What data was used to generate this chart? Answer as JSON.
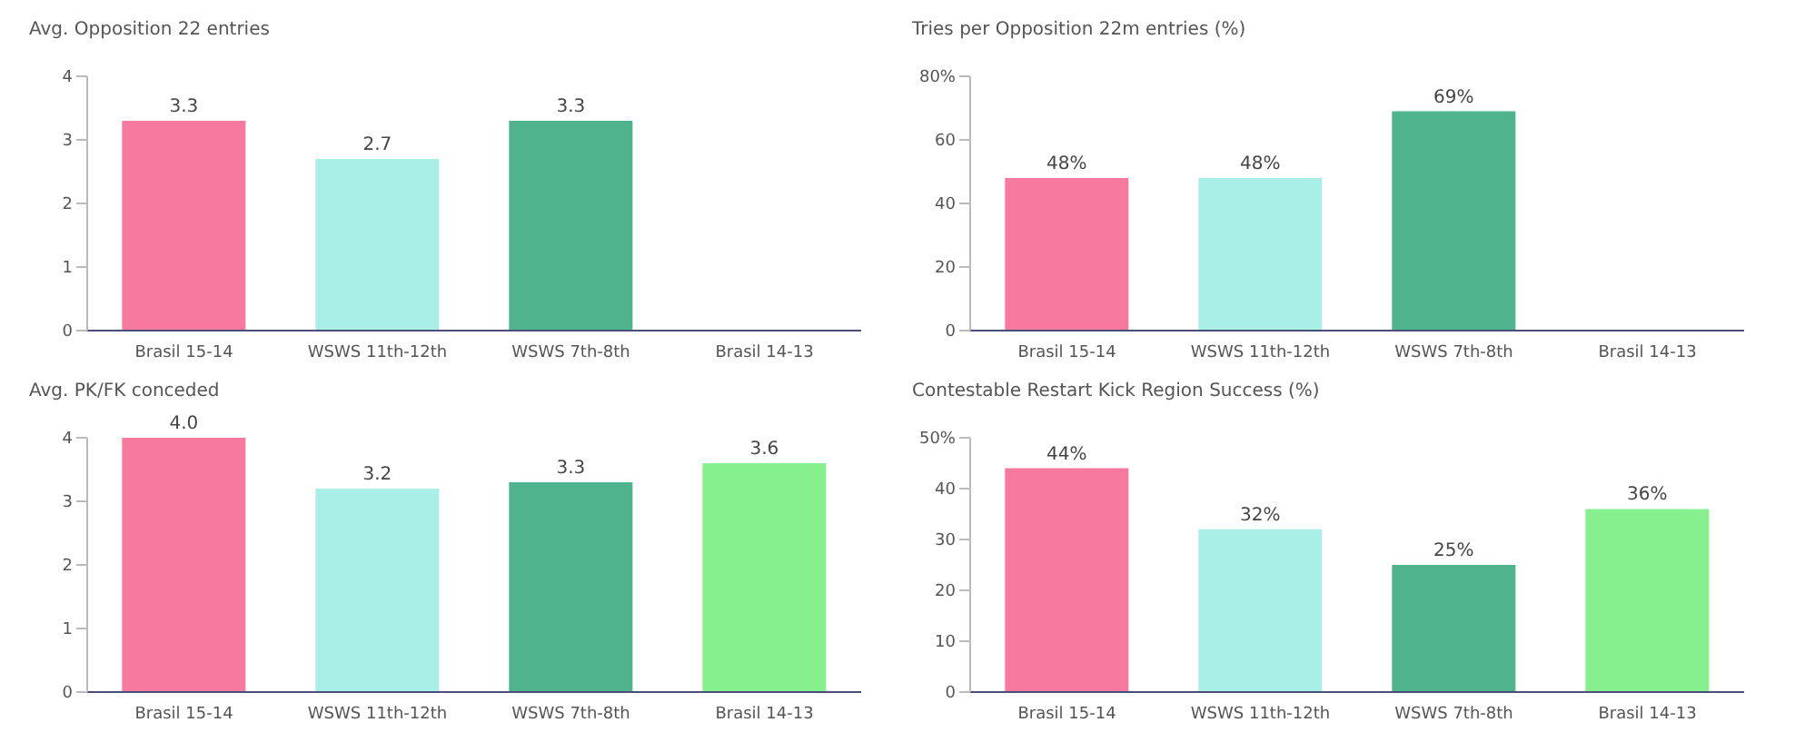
{
  "chart_data": [
    {
      "type": "bar",
      "title": "Avg. Opposition 22 entries",
      "categories": [
        "Brasil 15-14",
        "WSWS 11th-12th",
        "WSWS 7th-8th",
        "Brasil 14-13"
      ],
      "values": [
        3.3,
        2.7,
        3.3,
        null
      ],
      "colors": [
        "#f7799e",
        "#aaeee8",
        "#4fb48e",
        "#86f08e"
      ],
      "value_labels": [
        "3.3",
        "2.7",
        "3.3",
        null
      ],
      "ylim": [
        0,
        4
      ],
      "yticks": [
        0,
        1,
        2,
        3,
        4
      ]
    },
    {
      "type": "bar",
      "title": "Tries per Opposition 22m entries (%)",
      "categories": [
        "Brasil 15-14",
        "WSWS 11th-12th",
        "WSWS 7th-8th",
        "Brasil 14-13"
      ],
      "values": [
        48,
        48,
        69,
        null
      ],
      "colors": [
        "#f7799e",
        "#aaeee8",
        "#4fb48e",
        "#86f08e"
      ],
      "value_labels": [
        "48%",
        "48%",
        "69%",
        null
      ],
      "ylim": [
        0,
        80
      ],
      "yticks": [
        0,
        20,
        40,
        60,
        {
          "value": 80,
          "label": "80%"
        }
      ]
    },
    {
      "type": "bar",
      "title": "Avg. PK/FK conceded",
      "categories": [
        "Brasil 15-14",
        "WSWS 11th-12th",
        "WSWS 7th-8th",
        "Brasil 14-13"
      ],
      "values": [
        4.0,
        3.2,
        3.3,
        3.6
      ],
      "colors": [
        "#f7799e",
        "#aaeee8",
        "#4fb48e",
        "#86f08e"
      ],
      "value_labels": [
        "4.0",
        "3.2",
        "3.3",
        "3.6"
      ],
      "ylim": [
        0,
        4
      ],
      "yticks": [
        0,
        1,
        2,
        3,
        4
      ]
    },
    {
      "type": "bar",
      "title": "Contestable Restart Kick Region Success (%)",
      "categories": [
        "Brasil 15-14",
        "WSWS 11th-12th",
        "WSWS 7th-8th",
        "Brasil 14-13"
      ],
      "values": [
        44,
        32,
        25,
        36
      ],
      "colors": [
        "#f7799e",
        "#aaeee8",
        "#4fb48e",
        "#86f08e"
      ],
      "value_labels": [
        "44%",
        "32%",
        "25%",
        "36%"
      ],
      "ylim": [
        0,
        50
      ],
      "yticks": [
        0,
        10,
        20,
        30,
        40,
        {
          "value": 50,
          "label": "50%"
        }
      ]
    }
  ]
}
